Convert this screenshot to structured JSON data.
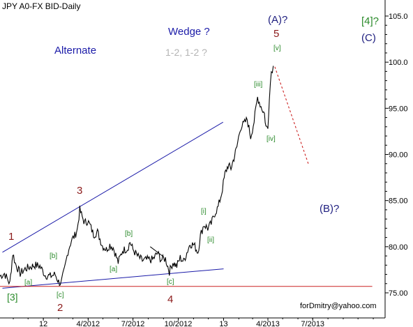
{
  "chart_data": {
    "type": "line",
    "title": "JPY A0-FX BID-Daily",
    "ylim": [
      74,
      106
    ],
    "y_ticks": [
      75.0,
      80.0,
      85.0,
      90.0,
      95.0,
      100.0,
      105.0
    ],
    "y_tick_labels": [
      "75.00",
      "80.00",
      "85.00",
      "90.00",
      "95.00",
      "100.0",
      "105.0"
    ],
    "x_ticks": [
      {
        "date": "2012-01-01",
        "label": "12"
      },
      {
        "date": "2012-04-01",
        "label": "4/2012"
      },
      {
        "date": "2012-07-01",
        "label": "7/2012"
      },
      {
        "date": "2012-10-01",
        "label": "10/2012"
      },
      {
        "date": "2013-01-01",
        "label": "13"
      },
      {
        "date": "2013-04-01",
        "label": "4/2013"
      },
      {
        "date": "2013-07-01",
        "label": "7/2013"
      }
    ],
    "xlim": [
      "2011-10-05",
      "2013-11-25"
    ],
    "grid": false,
    "series": [
      {
        "color": "#000000",
        "points": [
          [
            "2011-10-05",
            76.8
          ],
          [
            "2011-10-14",
            77.1
          ],
          [
            "2011-10-25",
            76.0
          ],
          [
            "2011-10-31",
            79.3
          ],
          [
            "2011-11-05",
            78.2
          ],
          [
            "2011-11-15",
            77.1
          ],
          [
            "2011-11-25",
            77.6
          ],
          [
            "2011-12-05",
            77.8
          ],
          [
            "2011-12-15",
            78.0
          ],
          [
            "2011-12-25",
            77.9
          ],
          [
            "2012-01-05",
            76.9
          ],
          [
            "2012-01-15",
            76.8
          ],
          [
            "2012-01-25",
            77.0
          ],
          [
            "2012-02-01",
            76.2
          ],
          [
            "2012-02-06",
            76.0
          ],
          [
            "2012-02-13",
            77.5
          ],
          [
            "2012-02-20",
            79.5
          ],
          [
            "2012-02-27",
            80.7
          ],
          [
            "2012-03-05",
            81.2
          ],
          [
            "2012-03-10",
            81.9
          ],
          [
            "2012-03-15",
            84.0
          ],
          [
            "2012-03-20",
            83.2
          ],
          [
            "2012-03-25",
            82.6
          ],
          [
            "2012-03-31",
            82.8
          ],
          [
            "2012-04-05",
            82.3
          ],
          [
            "2012-04-12",
            81.3
          ],
          [
            "2012-04-20",
            81.6
          ],
          [
            "2012-04-30",
            80.1
          ],
          [
            "2012-05-08",
            79.7
          ],
          [
            "2012-05-15",
            80.2
          ],
          [
            "2012-05-22",
            79.9
          ],
          [
            "2012-06-01",
            78.3
          ],
          [
            "2012-06-10",
            79.6
          ],
          [
            "2012-06-20",
            79.8
          ],
          [
            "2012-06-25",
            80.5
          ],
          [
            "2012-07-01",
            79.7
          ],
          [
            "2012-07-10",
            79.0
          ],
          [
            "2012-07-20",
            78.5
          ],
          [
            "2012-08-01",
            78.6
          ],
          [
            "2012-08-10",
            78.6
          ],
          [
            "2012-08-20",
            79.3
          ],
          [
            "2012-08-27",
            78.6
          ],
          [
            "2012-09-05",
            78.7
          ],
          [
            "2012-09-13",
            77.3
          ],
          [
            "2012-09-20",
            78.3
          ],
          [
            "2012-09-28",
            77.9
          ],
          [
            "2012-10-05",
            78.8
          ],
          [
            "2012-10-12",
            78.4
          ],
          [
            "2012-10-20",
            79.6
          ],
          [
            "2012-10-25",
            80.3
          ],
          [
            "2012-11-02",
            80.2
          ],
          [
            "2012-11-10",
            79.4
          ],
          [
            "2012-11-15",
            81.2
          ],
          [
            "2012-11-22",
            82.4
          ],
          [
            "2012-11-30",
            82.0
          ],
          [
            "2012-12-07",
            82.5
          ],
          [
            "2012-12-14",
            83.6
          ],
          [
            "2012-12-21",
            84.3
          ],
          [
            "2012-12-28",
            85.8
          ],
          [
            "2013-01-04",
            87.9
          ],
          [
            "2013-01-10",
            88.8
          ],
          [
            "2013-01-16",
            88.5
          ],
          [
            "2013-01-22",
            89.6
          ],
          [
            "2013-01-28",
            90.8
          ],
          [
            "2013-02-04",
            92.9
          ],
          [
            "2013-02-11",
            93.3
          ],
          [
            "2013-02-18",
            93.8
          ],
          [
            "2013-02-25",
            91.9
          ],
          [
            "2013-03-04",
            93.6
          ],
          [
            "2013-03-11",
            96.2
          ],
          [
            "2013-03-18",
            95.2
          ],
          [
            "2013-03-25",
            94.4
          ],
          [
            "2013-03-28",
            93.0
          ],
          [
            "2013-04-01",
            92.8
          ],
          [
            "2013-04-04",
            96.4
          ],
          [
            "2013-04-08",
            99.0
          ],
          [
            "2013-04-12",
            99.6
          ]
        ]
      }
    ],
    "overlay_lines": [
      {
        "color": "#1a1aa8",
        "points": [
          [
            "2011-10-10",
            79.4
          ],
          [
            "2012-12-31",
            93.5
          ]
        ]
      },
      {
        "color": "#1a1aa8",
        "points": [
          [
            "2011-10-10",
            75.5
          ],
          [
            "2013-01-01",
            77.6
          ]
        ]
      },
      {
        "color": "#cc2222",
        "points": [
          [
            "2011-10-05",
            75.7
          ],
          [
            "2013-10-30",
            75.7
          ]
        ]
      },
      {
        "color": "#cc2222",
        "dashed": true,
        "points": [
          [
            "2013-04-15",
            99.5
          ],
          [
            "2013-06-22",
            89.0
          ]
        ]
      },
      {
        "color": "#000000",
        "points": [
          [
            "2012-08-05",
            80.0
          ],
          [
            "2012-08-30",
            79.0
          ]
        ]
      }
    ]
  },
  "labels": {
    "alternate": "Alternate",
    "wedge": "Wedge ?",
    "wedge_sub": "1-2, 1-2 ?",
    "wave_a_q": "(A)?",
    "wave_5": "5",
    "wave_v": "[v]",
    "wave_iii": "[iii]",
    "wave_iv": "[iv]",
    "wave_4_q": "[4]?",
    "wave_c": "(C)",
    "wave_b_q": "(B)?",
    "wave_3": "3",
    "wave_1": "1",
    "wave_2": "2",
    "wave_4": "4",
    "wave_bracket_3": "[3]",
    "wave_a_small": "[a]",
    "wave_b_small": "[b]",
    "wave_c_small": "[c]",
    "wave_i": "[i]",
    "wave_ii": "[ii]",
    "wave_b_mid": "[b]",
    "wave_a_mid": "[a]",
    "wave_c_mid": "[c]",
    "credit": "forDmitry@yahoo.com"
  },
  "colors": {
    "blue": "#1a1aa8",
    "navy": "#202080",
    "red": "#8b1a1a",
    "green": "#2a8a2a",
    "grey": "#b4b4b4"
  }
}
